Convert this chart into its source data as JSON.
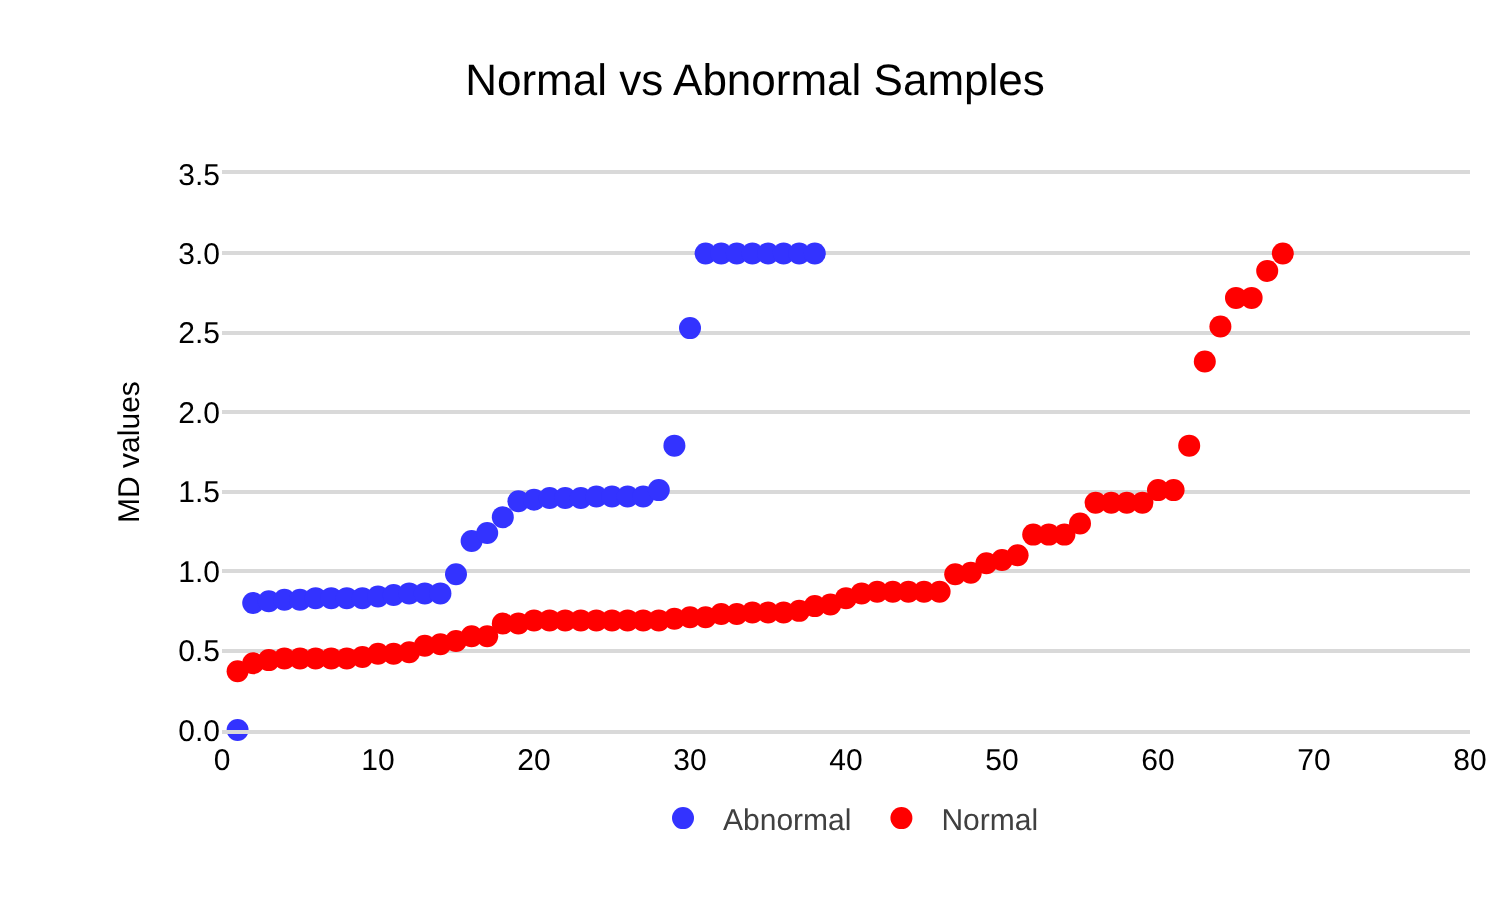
{
  "chart_data": {
    "type": "scatter",
    "title": "Normal vs Abnormal Samples",
    "ylabel": "MD values",
    "xlim": [
      0,
      80
    ],
    "xticks": [
      0,
      10,
      20,
      30,
      40,
      50,
      60,
      70,
      80
    ],
    "ylim": [
      0,
      3.5
    ],
    "yticks": [
      {
        "value": 0,
        "label": "0.0"
      },
      {
        "value": 0.5,
        "label": "0.5"
      },
      {
        "value": 1,
        "label": "1.0"
      },
      {
        "value": 1.5,
        "label": "1.5"
      },
      {
        "value": 2,
        "label": "2.0"
      },
      {
        "value": 2.5,
        "label": "2.5"
      },
      {
        "value": 3,
        "label": "3.0"
      },
      {
        "value": 3.5,
        "label": "3.5"
      }
    ],
    "grid": "y",
    "legend": "bottom",
    "marker": "circle",
    "series": [
      {
        "name": "Abnormal",
        "color": "#3333ff",
        "x": [
          1,
          2,
          3,
          4,
          5,
          6,
          7,
          8,
          9,
          10,
          11,
          12,
          13,
          14,
          15,
          16,
          17,
          18,
          19,
          20,
          21,
          22,
          23,
          24,
          25,
          26,
          27,
          28,
          29,
          30,
          31,
          32,
          33,
          34,
          35,
          36,
          37,
          38
        ],
        "values": [
          0.0,
          0.8,
          0.81,
          0.82,
          0.82,
          0.83,
          0.83,
          0.83,
          0.83,
          0.84,
          0.85,
          0.86,
          0.86,
          0.86,
          0.98,
          1.19,
          1.24,
          1.34,
          1.44,
          1.45,
          1.46,
          1.46,
          1.46,
          1.47,
          1.47,
          1.47,
          1.47,
          1.51,
          1.79,
          2.53,
          3.0,
          3.0,
          3.0,
          3.0,
          3.0,
          3.0,
          3.0,
          3.0
        ]
      },
      {
        "name": "Normal",
        "color": "#ff0000",
        "x": [
          1,
          2,
          3,
          4,
          5,
          6,
          7,
          8,
          9,
          10,
          11,
          12,
          13,
          14,
          15,
          16,
          17,
          18,
          19,
          20,
          21,
          22,
          23,
          24,
          25,
          26,
          27,
          28,
          29,
          30,
          31,
          32,
          33,
          34,
          35,
          36,
          37,
          38,
          39,
          40,
          41,
          42,
          43,
          44,
          45,
          46,
          47,
          48,
          49,
          50,
          51,
          52,
          53,
          54,
          55,
          56,
          57,
          58,
          59,
          60,
          61,
          62,
          63,
          64,
          65,
          66,
          67,
          68
        ],
        "values": [
          0.37,
          0.42,
          0.44,
          0.45,
          0.45,
          0.45,
          0.45,
          0.45,
          0.46,
          0.48,
          0.48,
          0.49,
          0.53,
          0.54,
          0.56,
          0.59,
          0.59,
          0.67,
          0.67,
          0.69,
          0.69,
          0.69,
          0.69,
          0.69,
          0.69,
          0.69,
          0.69,
          0.69,
          0.7,
          0.71,
          0.71,
          0.73,
          0.73,
          0.74,
          0.74,
          0.74,
          0.75,
          0.78,
          0.79,
          0.83,
          0.86,
          0.87,
          0.87,
          0.87,
          0.87,
          0.87,
          0.98,
          0.99,
          1.05,
          1.07,
          1.1,
          1.23,
          1.23,
          1.23,
          1.3,
          1.43,
          1.43,
          1.43,
          1.43,
          1.51,
          1.51,
          1.79,
          2.32,
          2.54,
          2.72,
          2.72,
          2.89,
          3.0
        ]
      }
    ]
  }
}
